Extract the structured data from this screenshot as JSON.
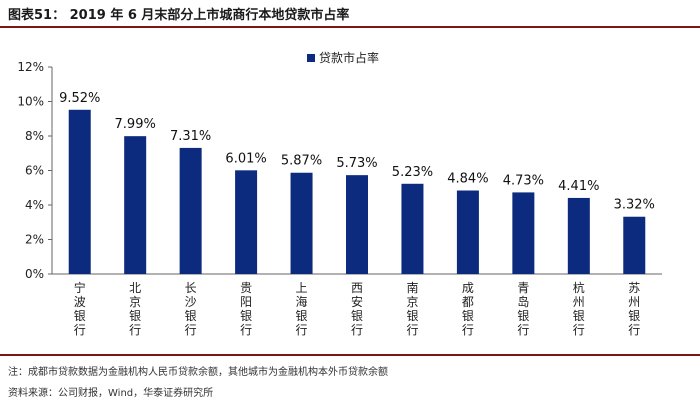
{
  "title": "图表51：  2019 年 6 月末部分上市城商行本地贷款市占率",
  "note": "注：成都市贷款数据为金融机构人民币贷款余额，其他城市为金融机构本外币贷款余额",
  "source": "资料来源：公司财报，Wind，华泰证券研究所",
  "colors": {
    "bar": "#0c2a7e",
    "rule": "#7f1416"
  },
  "chart_data": {
    "type": "bar",
    "legend": [
      "贷款市占率"
    ],
    "legend_position": "top-center",
    "grid": false,
    "categories": [
      "宁波银行",
      "北京银行",
      "长沙银行",
      "贵阳银行",
      "上海银行",
      "西安银行",
      "南京银行",
      "成都银行",
      "青岛银行",
      "杭州银行",
      "苏州银行"
    ],
    "values": [
      9.52,
      7.99,
      7.31,
      6.01,
      5.87,
      5.73,
      5.23,
      4.84,
      4.73,
      4.41,
      3.32
    ],
    "data_labels": [
      "9.52%",
      "7.99%",
      "7.31%",
      "6.01%",
      "5.87%",
      "5.73%",
      "5.23%",
      "4.84%",
      "4.73%",
      "4.41%",
      "3.32%"
    ],
    "yticks": [
      "0%",
      "2%",
      "4%",
      "6%",
      "8%",
      "10%",
      "12%"
    ],
    "ylim": [
      0,
      12
    ]
  }
}
